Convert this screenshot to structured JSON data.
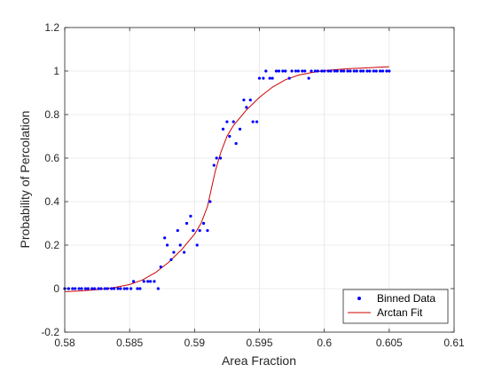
{
  "chart_data": {
    "type": "scatter",
    "title": "",
    "xlabel": "Area Fraction",
    "ylabel": "Probability of Percolation",
    "xlim": [
      0.58,
      0.61
    ],
    "ylim": [
      -0.2,
      1.2
    ],
    "x_ticks": [
      "0.58",
      "0.585",
      "0.59",
      "0.595",
      "0.6",
      "0.605",
      "0.61"
    ],
    "y_ticks": [
      "-0.2",
      "0",
      "0.2",
      "0.4",
      "0.6",
      "0.8",
      "1",
      "1.2"
    ],
    "grid": true,
    "legend_position": "bottom-right",
    "colors": {
      "scatter": "#0000ff",
      "fit": "#cc0000",
      "grid": "#e6e6e6",
      "axis": "#262626"
    },
    "series": [
      {
        "name": "Binned Data",
        "kind": "scatter",
        "points": [
          [
            0.58,
            0
          ],
          [
            0.5803,
            0
          ],
          [
            0.5806,
            0
          ],
          [
            0.5808,
            0
          ],
          [
            0.5811,
            0
          ],
          [
            0.5813,
            0
          ],
          [
            0.5816,
            0
          ],
          [
            0.5818,
            0
          ],
          [
            0.5821,
            0
          ],
          [
            0.5823,
            0
          ],
          [
            0.5826,
            0
          ],
          [
            0.5828,
            0
          ],
          [
            0.5831,
            0
          ],
          [
            0.5833,
            0
          ],
          [
            0.5836,
            0
          ],
          [
            0.5838,
            0
          ],
          [
            0.5841,
            0
          ],
          [
            0.5843,
            0
          ],
          [
            0.5846,
            0
          ],
          [
            0.5848,
            0
          ],
          [
            0.5851,
            0
          ],
          [
            0.5853,
            0.033
          ],
          [
            0.5856,
            0
          ],
          [
            0.5858,
            0
          ],
          [
            0.5861,
            0.033
          ],
          [
            0.5864,
            0.033
          ],
          [
            0.5866,
            0.033
          ],
          [
            0.5869,
            0.033
          ],
          [
            0.5872,
            0
          ],
          [
            0.5874,
            0.1
          ],
          [
            0.5877,
            0.233
          ],
          [
            0.5879,
            0.2
          ],
          [
            0.5882,
            0.133
          ],
          [
            0.5884,
            0.167
          ],
          [
            0.5887,
            0.267
          ],
          [
            0.5889,
            0.2
          ],
          [
            0.5892,
            0.167
          ],
          [
            0.5894,
            0.3
          ],
          [
            0.5897,
            0.333
          ],
          [
            0.5899,
            0.267
          ],
          [
            0.5902,
            0.2
          ],
          [
            0.5904,
            0.267
          ],
          [
            0.5907,
            0.3
          ],
          [
            0.591,
            0.267
          ],
          [
            0.5912,
            0.4
          ],
          [
            0.5915,
            0.567
          ],
          [
            0.5917,
            0.6
          ],
          [
            0.592,
            0.6
          ],
          [
            0.5922,
            0.733
          ],
          [
            0.5925,
            0.767
          ],
          [
            0.5927,
            0.7
          ],
          [
            0.593,
            0.767
          ],
          [
            0.5932,
            0.667
          ],
          [
            0.5935,
            0.733
          ],
          [
            0.5938,
            0.867
          ],
          [
            0.594,
            0.833
          ],
          [
            0.5943,
            0.867
          ],
          [
            0.5945,
            0.767
          ],
          [
            0.5948,
            0.767
          ],
          [
            0.595,
            0.967
          ],
          [
            0.5953,
            0.967
          ],
          [
            0.5955,
            1.0
          ],
          [
            0.5958,
            0.967
          ],
          [
            0.596,
            0.967
          ],
          [
            0.5963,
            1.0
          ],
          [
            0.5965,
            1.0
          ],
          [
            0.5968,
            1.0
          ],
          [
            0.597,
            1.0
          ],
          [
            0.5973,
            0.967
          ],
          [
            0.5975,
            1.0
          ],
          [
            0.5978,
            1.0
          ],
          [
            0.598,
            1.0
          ],
          [
            0.5983,
            1.0
          ],
          [
            0.5985,
            1.0
          ],
          [
            0.5988,
            0.967
          ],
          [
            0.599,
            1.0
          ],
          [
            0.5993,
            1.0
          ],
          [
            0.5995,
            1.0
          ],
          [
            0.5998,
            1.0
          ],
          [
            0.6,
            1.0
          ],
          [
            0.6003,
            1.0
          ],
          [
            0.6005,
            1.0
          ],
          [
            0.6008,
            1.0
          ],
          [
            0.601,
            1.0
          ],
          [
            0.6013,
            1.0
          ],
          [
            0.6015,
            1.0
          ],
          [
            0.6018,
            1.0
          ],
          [
            0.602,
            1.0
          ],
          [
            0.6023,
            1.0
          ],
          [
            0.6025,
            1.0
          ],
          [
            0.6028,
            1.0
          ],
          [
            0.603,
            1.0
          ],
          [
            0.6033,
            1.0
          ],
          [
            0.6035,
            1.0
          ],
          [
            0.6038,
            1.0
          ],
          [
            0.604,
            1.0
          ],
          [
            0.6043,
            1.0
          ],
          [
            0.6045,
            1.0
          ],
          [
            0.6048,
            1.0
          ],
          [
            0.605,
            1.0
          ]
        ]
      },
      {
        "name": "Arctan Fit",
        "kind": "line",
        "points": [
          [
            0.58,
            -0.014
          ],
          [
            0.581,
            -0.011
          ],
          [
            0.582,
            -0.007
          ],
          [
            0.583,
            -0.002
          ],
          [
            0.584,
            0.007
          ],
          [
            0.585,
            0.019
          ],
          [
            0.586,
            0.04
          ],
          [
            0.587,
            0.074
          ],
          [
            0.588,
            0.121
          ],
          [
            0.589,
            0.179
          ],
          [
            0.59,
            0.25
          ],
          [
            0.5905,
            0.3
          ],
          [
            0.591,
            0.378
          ],
          [
            0.5913,
            0.46
          ],
          [
            0.5916,
            0.54
          ],
          [
            0.592,
            0.622
          ],
          [
            0.5925,
            0.7
          ],
          [
            0.593,
            0.75
          ],
          [
            0.594,
            0.821
          ],
          [
            0.595,
            0.879
          ],
          [
            0.596,
            0.926
          ],
          [
            0.597,
            0.96
          ],
          [
            0.598,
            0.981
          ],
          [
            0.599,
            0.993
          ],
          [
            0.6,
            1.002
          ],
          [
            0.601,
            1.007
          ],
          [
            0.602,
            1.011
          ],
          [
            0.603,
            1.014
          ],
          [
            0.604,
            1.017
          ],
          [
            0.605,
            1.02
          ]
        ]
      }
    ]
  }
}
